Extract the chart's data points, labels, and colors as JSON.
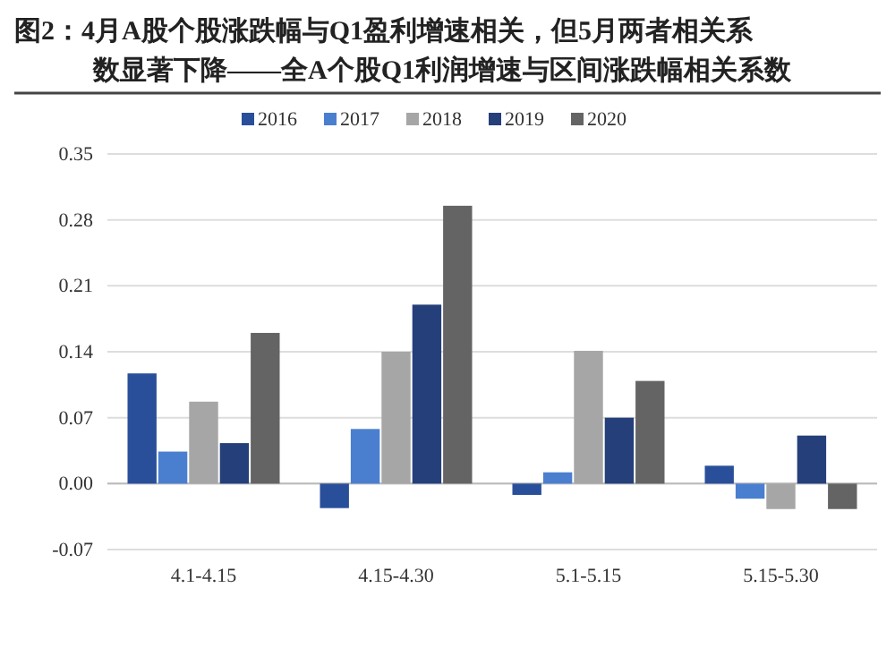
{
  "chart_data": {
    "type": "bar",
    "title": "图2：4月A股个股涨跌幅与Q1盈利增速相关，但5月两者相关系数显著下降——全A个股Q1利润增速与区间涨跌幅相关系数",
    "categories": [
      "4.1-4.15",
      "4.15-4.30",
      "5.1-5.15",
      "5.15-5.30"
    ],
    "series": [
      {
        "name": "2016",
        "color": "#2a4f9a",
        "values": [
          0.117,
          -0.026,
          -0.012,
          0.019
        ]
      },
      {
        "name": "2017",
        "color": "#4a7fd0",
        "values": [
          0.034,
          0.058,
          0.012,
          -0.016
        ]
      },
      {
        "name": "2018",
        "color": "#a6a6a6",
        "values": [
          0.087,
          0.14,
          0.141,
          -0.027
        ]
      },
      {
        "name": "2019",
        "color": "#253f7a",
        "values": [
          0.043,
          0.19,
          0.07,
          0.051
        ]
      },
      {
        "name": "2020",
        "color": "#646464",
        "values": [
          0.16,
          0.295,
          0.109,
          -0.027
        ]
      }
    ],
    "ylim": [
      -0.07,
      0.35
    ],
    "yticks": [
      {
        "value": -0.07,
        "label": "-0.07"
      },
      {
        "value": 0,
        "label": "0.00"
      },
      {
        "value": 0.07,
        "label": "0.07"
      },
      {
        "value": 0.14,
        "label": "0.14"
      },
      {
        "value": 0.21,
        "label": "0.21"
      },
      {
        "value": 0.28,
        "label": "0.28"
      },
      {
        "value": 0.35,
        "label": "0.35"
      }
    ],
    "grid": "y",
    "legend": "top"
  }
}
